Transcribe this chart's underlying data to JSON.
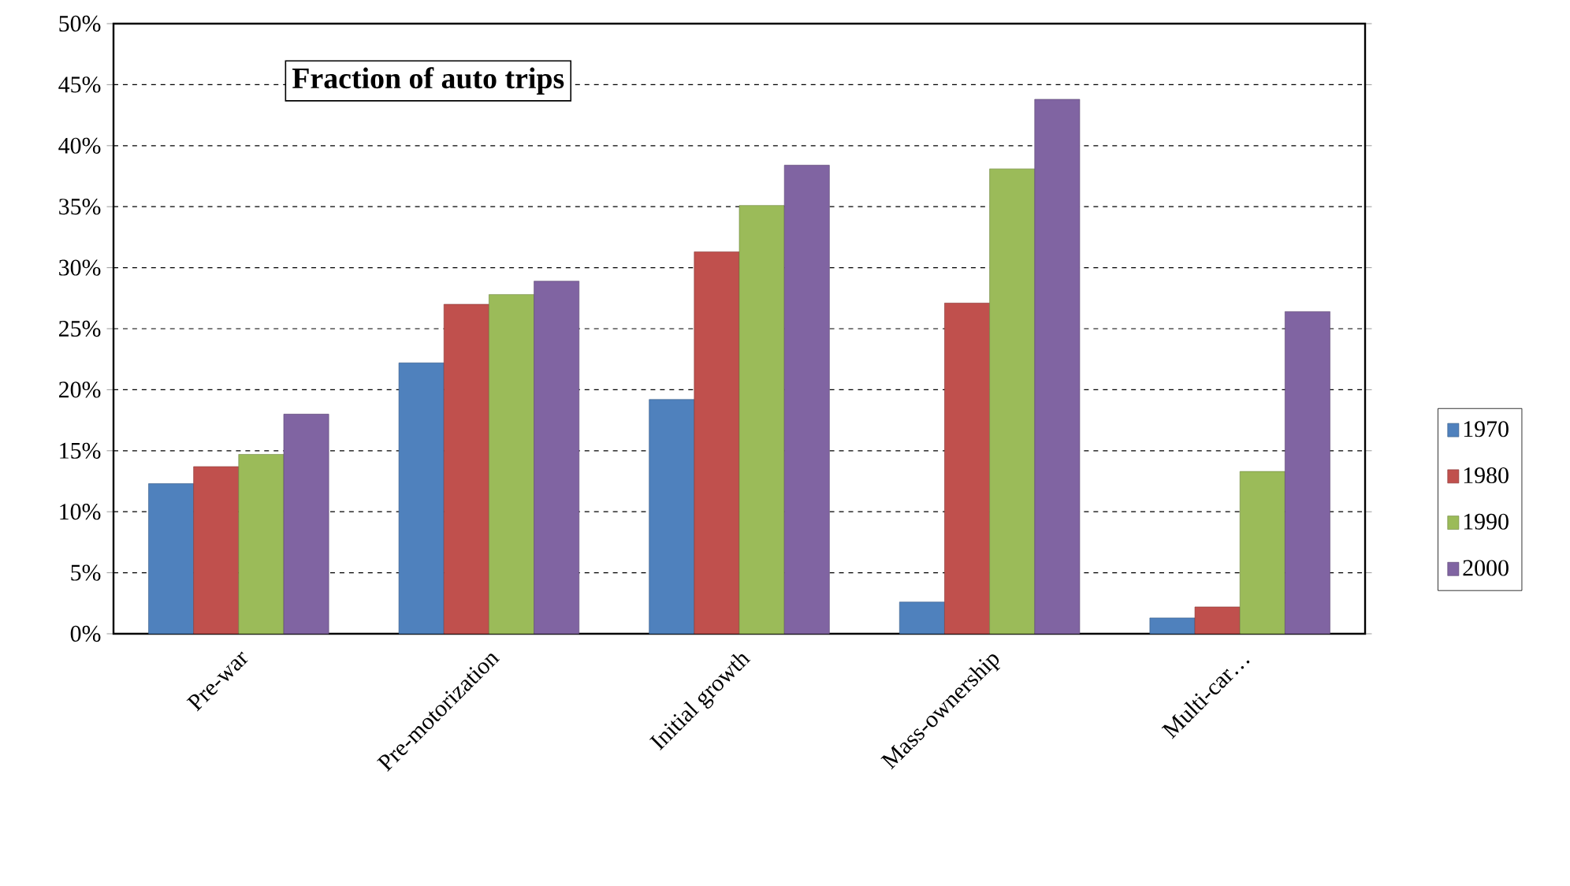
{
  "chart_data": {
    "type": "bar",
    "title": "Fraction of auto trips",
    "categories": [
      "Pre-war",
      "Pre-motorization",
      "Initial growth",
      "Mass-ownership",
      "Multi-car…"
    ],
    "series": [
      {
        "name": "1970",
        "color": "#4f81bd",
        "values": [
          12.3,
          22.2,
          19.2,
          2.6,
          1.3
        ]
      },
      {
        "name": "1980",
        "color": "#c0504d",
        "values": [
          13.7,
          27.0,
          31.3,
          27.1,
          2.2
        ]
      },
      {
        "name": "1990",
        "color": "#9bbb59",
        "values": [
          14.7,
          27.8,
          35.1,
          38.1,
          13.3
        ]
      },
      {
        "name": "2000",
        "color": "#8064a2",
        "values": [
          18.0,
          28.9,
          38.4,
          43.8,
          26.4
        ]
      }
    ],
    "ylim": [
      0,
      50
    ],
    "yticks": [
      {
        "value": 0,
        "label": "0%"
      },
      {
        "value": 5,
        "label": "5%"
      },
      {
        "value": 10,
        "label": "10%"
      },
      {
        "value": 15,
        "label": "15%"
      },
      {
        "value": 20,
        "label": "20%"
      },
      {
        "value": 25,
        "label": "25%"
      },
      {
        "value": 30,
        "label": "30%"
      },
      {
        "value": 35,
        "label": "35%"
      },
      {
        "value": 40,
        "label": "40%"
      },
      {
        "value": 45,
        "label": "45%"
      },
      {
        "value": 50,
        "label": "50%"
      }
    ],
    "grid": "y",
    "legend": "right"
  }
}
